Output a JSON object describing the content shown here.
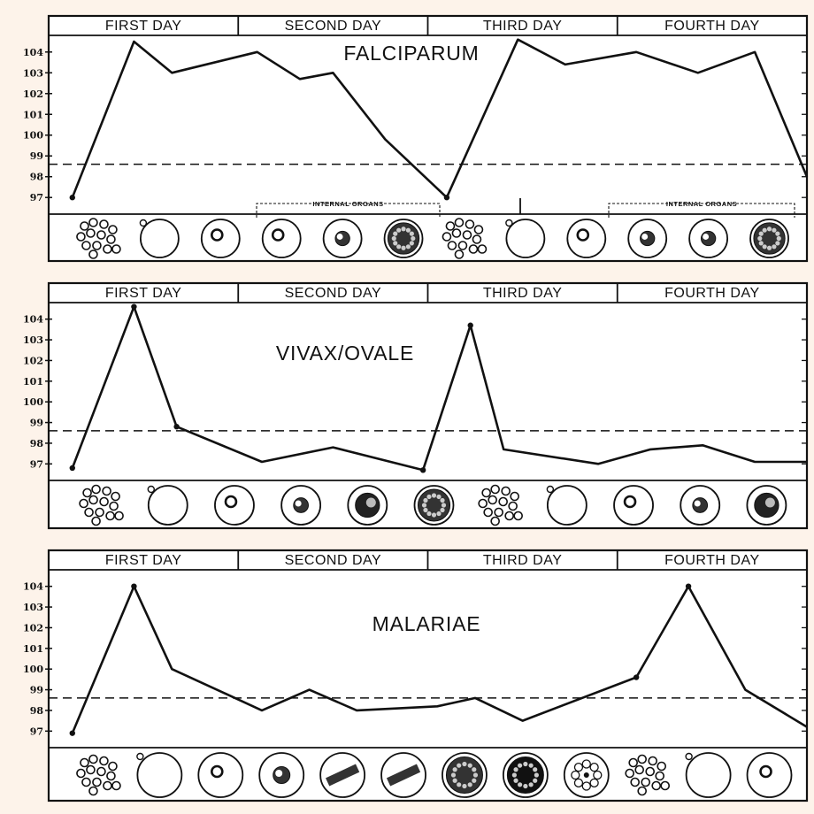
{
  "chart_data": [
    {
      "type": "line",
      "title": "FALCIPARUM",
      "days": [
        "FIRST DAY",
        "SECOND DAY",
        "THIRD DAY",
        "FOURTH DAY"
      ],
      "y_tick_labels": [
        "97",
        "98",
        "99",
        "100",
        "101",
        "102",
        "103",
        "104"
      ],
      "ylim": [
        96.2,
        104.8
      ],
      "normal_line": 98.6,
      "x": [
        0.25,
        0.9,
        1.3,
        2.2,
        2.65,
        3.0,
        3.55,
        4.2,
        4.95,
        5.45,
        6.2,
        6.85,
        7.45,
        8.0
      ],
      "y": [
        97.0,
        104.5,
        103.0,
        104.0,
        102.7,
        103.0,
        99.8,
        97.0,
        104.6,
        103.4,
        104.0,
        103.0,
        104.0,
        98.0
      ],
      "marked_points": [
        0,
        7
      ],
      "annotations": [
        "INTERNAL ORGANS",
        "INTERNAL ORGANS"
      ],
      "cells": [
        "rbc-cluster",
        "rbc",
        "rbc-ring",
        "rbc-ring-small",
        "rbc-trophozoite",
        "rbc-schizont",
        "rbc-cluster",
        "rbc",
        "rbc-ring",
        "rbc-dark-small",
        "rbc-trophozoite",
        "rbc-schizont"
      ]
    },
    {
      "type": "line",
      "title": "VIVAX/OVALE",
      "days": [
        "FIRST DAY",
        "SECOND DAY",
        "THIRD DAY",
        "FOURTH DAY"
      ],
      "y_tick_labels": [
        "97",
        "98",
        "99",
        "100",
        "101",
        "102",
        "103",
        "104"
      ],
      "ylim": [
        96.2,
        104.8
      ],
      "normal_line": 98.6,
      "x": [
        0.25,
        0.9,
        1.35,
        2.25,
        3.0,
        3.95,
        4.45,
        4.8,
        5.8,
        6.35,
        6.9,
        7.45,
        8.0
      ],
      "y": [
        96.8,
        104.6,
        98.8,
        97.1,
        97.8,
        96.7,
        103.7,
        97.7,
        97.0,
        97.7,
        97.9,
        97.1,
        97.1
      ],
      "marked_points": [
        0,
        1,
        2,
        5,
        6
      ],
      "cells": [
        "rbc-cluster",
        "rbc",
        "rbc-ring",
        "rbc-trophozoite",
        "rbc-trophozoite-large",
        "rbc-schizont",
        "rbc-cluster",
        "rbc",
        "rbc-ring",
        "rbc-trophozoite",
        "rbc-trophozoite-large"
      ]
    },
    {
      "type": "line",
      "title": "MALARIAE",
      "days": [
        "FIRST DAY",
        "SECOND DAY",
        "THIRD DAY",
        "FOURTH DAY"
      ],
      "y_tick_labels": [
        "97",
        "98",
        "99",
        "100",
        "101",
        "102",
        "103",
        "104"
      ],
      "ylim": [
        96.2,
        104.8
      ],
      "normal_line": 98.6,
      "x": [
        0.25,
        0.9,
        1.3,
        2.25,
        2.75,
        3.25,
        4.1,
        4.5,
        5.0,
        6.2,
        6.75,
        7.35,
        8.0
      ],
      "y": [
        96.9,
        104.0,
        100.0,
        98.0,
        99.0,
        98.0,
        98.2,
        98.6,
        97.5,
        99.6,
        104.0,
        99.0,
        97.2
      ],
      "marked_points": [
        0,
        1,
        9,
        10
      ],
      "cells": [
        "rbc-cluster",
        "rbc",
        "rbc-ring",
        "rbc-trophozoite",
        "rbc-band",
        "rbc-band",
        "rbc-schizont",
        "rbc-schizont-dark",
        "rbc-rosette",
        "rbc-cluster",
        "rbc",
        "rbc-ring"
      ]
    }
  ]
}
